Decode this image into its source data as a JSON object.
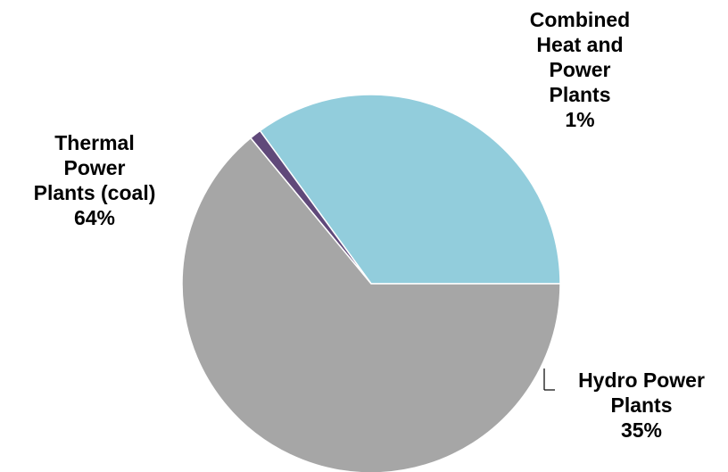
{
  "chart_data": {
    "type": "pie",
    "start_angle_deg": 0,
    "direction": "counterclockwise",
    "slices": [
      {
        "label_lines": [
          "Hydro Power",
          "Plants"
        ],
        "value": 35,
        "value_label": "35%",
        "color": "#92CDDC"
      },
      {
        "label_lines": [
          "Combined",
          "Heat and",
          "Power",
          "Plants"
        ],
        "value": 1,
        "value_label": "1%",
        "color": "#60497A"
      },
      {
        "label_lines": [
          "Thermal",
          "Power",
          "Plants (coal)"
        ],
        "value": 64,
        "value_label": "64%",
        "color": "#A6A6A6"
      }
    ],
    "legend": false
  }
}
